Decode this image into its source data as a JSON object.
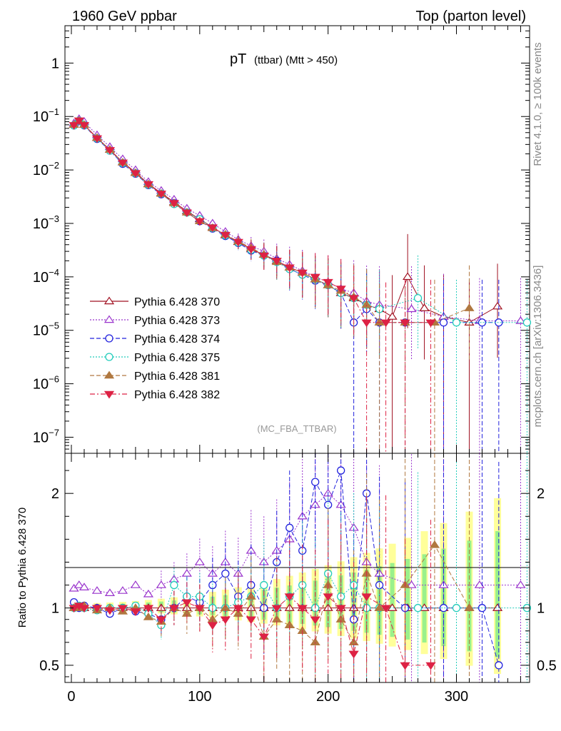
{
  "header": {
    "left": "1960 GeV ppbar",
    "right": "Top (parton level)"
  },
  "side_labels": {
    "rivet": "Rivet 4.1.0, ≥ 100k events",
    "mcplots": "mcplots.cern.ch [arXiv:1306.3436]"
  },
  "chart_data": {
    "type": "scatter",
    "title_main": "pT",
    "title_sub": "(ttbar) (Mtt > 450)",
    "watermark": "(MC_FBA_TTBAR)",
    "xlabel": "",
    "xlim": [
      -5,
      357
    ],
    "x_ticks": [
      "0",
      "100",
      "200",
      "300"
    ],
    "main": {
      "ylabel": "",
      "yscale": "log",
      "ylim": [
        5e-08,
        5
      ],
      "y_ticks": [
        {
          "base": "10",
          "exp": "−7",
          "v": 1e-07
        },
        {
          "base": "10",
          "exp": "−6",
          "v": 1e-06
        },
        {
          "base": "10",
          "exp": "−5",
          "v": 1e-05
        },
        {
          "base": "10",
          "exp": "−4",
          "v": 0.0001
        },
        {
          "base": "10",
          "exp": "−3",
          "v": 0.001
        },
        {
          "base": "10",
          "exp": "−2",
          "v": 0.01
        },
        {
          "base": "10",
          "exp": "−1",
          "v": 0.1
        },
        {
          "base": "1",
          "exp": "",
          "v": 1
        }
      ]
    },
    "ratio": {
      "ylabel": "Ratio to Pythia 6.428 370",
      "ylim": [
        0.35,
        2.35
      ],
      "y_ticks": [
        "0.5",
        "1",
        "2"
      ]
    },
    "legend": {
      "position": "lower-left"
    },
    "series": [
      {
        "name": "Pythia 6.428 370",
        "color": "#a01020",
        "marker": "triangle-open",
        "line": "solid",
        "x": [
          2,
          6,
          10,
          20,
          30,
          40,
          50,
          60,
          70,
          80,
          90,
          100,
          110,
          120,
          130,
          140,
          150,
          160,
          170,
          180,
          190,
          200,
          210,
          220,
          230,
          240,
          250,
          262,
          275,
          290,
          310,
          332
        ],
        "y": [
          0.07,
          0.085,
          0.07,
          0.04,
          0.024,
          0.014,
          0.009,
          0.0055,
          0.0037,
          0.0025,
          0.0017,
          0.0012,
          0.00085,
          0.0006,
          0.00045,
          0.00033,
          0.00026,
          0.0002,
          0.00015,
          0.00012,
          9e-05,
          7e-05,
          5e-05,
          4e-05,
          3e-05,
          2.5e-05,
          1.8e-05,
          0.0001,
          2.6e-05,
          1.8e-05,
          1.4e-05,
          2.8e-05
        ],
        "ratio": [
          1,
          1,
          1,
          1,
          1,
          1,
          1,
          1,
          1,
          1,
          1,
          1,
          1,
          1,
          1,
          1,
          1,
          1,
          1,
          1,
          1,
          1,
          1,
          1,
          1,
          1,
          1,
          1,
          1,
          1,
          1,
          1
        ]
      },
      {
        "name": "Pythia 6.428 373",
        "color": "#9933cc",
        "marker": "triangle-open",
        "line": "dotted",
        "x": [
          2,
          6,
          10,
          20,
          30,
          40,
          50,
          60,
          70,
          80,
          90,
          100,
          110,
          120,
          130,
          140,
          150,
          160,
          170,
          180,
          190,
          200,
          210,
          220,
          230,
          240,
          265,
          290,
          318,
          350
        ],
        "y": [
          0.075,
          0.09,
          0.08,
          0.045,
          0.027,
          0.016,
          0.01,
          0.006,
          0.0041,
          0.0028,
          0.0019,
          0.0014,
          0.001,
          0.0007,
          0.0005,
          0.00038,
          0.0003,
          0.00022,
          0.00017,
          0.00013,
          0.0001,
          8e-05,
          6e-05,
          5e-05,
          3.5e-05,
          3e-05,
          2.5e-05,
          1.8e-05,
          1.5e-05,
          1.5e-05
        ],
        "ratio": [
          1.17,
          1.2,
          1.18,
          1.15,
          1.13,
          1.15,
          1.2,
          1.12,
          1.2,
          1.25,
          1.3,
          1.4,
          1.3,
          1.4,
          1.3,
          1.5,
          1.4,
          1.5,
          1.6,
          1.8,
          1.9,
          2.0,
          1.9,
          1.7,
          1.4,
          1.3,
          1.2,
          1.2,
          1.2,
          1.2
        ]
      },
      {
        "name": "Pythia 6.428 374",
        "color": "#2222dd",
        "marker": "circle-open",
        "line": "dashed",
        "x": [
          2,
          6,
          10,
          20,
          30,
          40,
          50,
          60,
          70,
          80,
          90,
          100,
          110,
          120,
          130,
          140,
          150,
          160,
          170,
          180,
          190,
          200,
          210,
          220,
          230,
          240,
          260,
          290,
          320,
          333
        ],
        "y": [
          0.068,
          0.082,
          0.068,
          0.038,
          0.023,
          0.013,
          0.0085,
          0.0052,
          0.0035,
          0.0024,
          0.0016,
          0.0011,
          0.0008,
          0.00058,
          0.00043,
          0.00031,
          0.00025,
          0.0002,
          0.00014,
          0.00011,
          8.5e-05,
          7e-05,
          5e-05,
          1.4e-05,
          2.5e-05,
          1.4e-05,
          1.4e-05,
          1.4e-05,
          1.4e-05,
          1.4e-05
        ],
        "ratio": [
          1.05,
          1.0,
          1.02,
          1.0,
          0.95,
          1.0,
          0.97,
          0.95,
          0.9,
          1.0,
          1.1,
          1.05,
          1.2,
          1.3,
          1.1,
          1.2,
          1.0,
          1.4,
          1.7,
          1.5,
          2.1,
          1.9,
          2.2,
          0.9,
          2.0,
          1.2,
          1.0,
          1.0,
          1.0,
          0.5
        ]
      },
      {
        "name": "Pythia 6.428 375",
        "color": "#22ccbb",
        "marker": "circle-open",
        "line": "dotted",
        "x": [
          2,
          6,
          10,
          20,
          30,
          40,
          50,
          60,
          70,
          80,
          90,
          100,
          110,
          120,
          130,
          140,
          150,
          160,
          170,
          180,
          190,
          200,
          210,
          220,
          230,
          240,
          270,
          300,
          355
        ],
        "y": [
          0.068,
          0.083,
          0.069,
          0.039,
          0.023,
          0.0135,
          0.0087,
          0.0053,
          0.0036,
          0.0023,
          0.0016,
          0.0012,
          0.00082,
          0.0006,
          0.00044,
          0.00032,
          0.00025,
          0.00019,
          0.00014,
          0.00011,
          9e-05,
          7e-05,
          5e-05,
          4e-05,
          3e-05,
          2.5e-05,
          4e-05,
          1.4e-05,
          1.4e-05
        ],
        "ratio": [
          1.0,
          1.02,
          1.0,
          0.98,
          1.0,
          1.0,
          1.02,
          0.95,
          0.85,
          1.2,
          1.1,
          1.1,
          1.0,
          1.0,
          1.05,
          1.1,
          1.2,
          1.0,
          1.1,
          1.2,
          1.0,
          1.3,
          1.1,
          1.2,
          1.0,
          1.0,
          1.0,
          1.0,
          1.0
        ]
      },
      {
        "name": "Pythia 6.428 381",
        "color": "#b07840",
        "marker": "triangle-filled",
        "line": "dashed",
        "x": [
          2,
          6,
          10,
          20,
          30,
          40,
          50,
          60,
          70,
          80,
          90,
          100,
          110,
          120,
          130,
          140,
          150,
          160,
          170,
          180,
          190,
          200,
          210,
          220,
          230,
          240,
          260,
          283,
          310
        ],
        "y": [
          0.07,
          0.083,
          0.07,
          0.04,
          0.024,
          0.0138,
          0.0088,
          0.0054,
          0.0036,
          0.0024,
          0.0016,
          0.0011,
          0.00082,
          0.00062,
          0.00046,
          0.00035,
          0.00026,
          0.00019,
          0.00015,
          0.00012,
          9e-05,
          7e-05,
          5.5e-05,
          4.2e-05,
          3e-05,
          1.4e-05,
          1.4e-05,
          1.4e-05,
          2.6e-05
        ],
        "ratio": [
          1.0,
          1.0,
          1.02,
          0.98,
          1.0,
          0.97,
          1.0,
          0.92,
          0.88,
          1.0,
          0.95,
          1.0,
          0.9,
          1.0,
          0.95,
          1.1,
          0.75,
          0.9,
          0.85,
          0.8,
          0.7,
          1.2,
          0.9,
          0.7,
          1.3,
          1.0,
          1.2,
          1.55,
          1.0
        ]
      },
      {
        "name": "Pythia 6.428 382",
        "color": "#dd2244",
        "marker": "triangle-down-filled",
        "line": "dashdot",
        "x": [
          2,
          6,
          10,
          20,
          30,
          40,
          50,
          60,
          70,
          80,
          90,
          100,
          110,
          120,
          130,
          140,
          150,
          160,
          170,
          180,
          190,
          200,
          210,
          220,
          230,
          245,
          260,
          280
        ],
        "y": [
          0.069,
          0.084,
          0.069,
          0.039,
          0.0235,
          0.0137,
          0.0087,
          0.0054,
          0.0036,
          0.0024,
          0.0016,
          0.0011,
          0.00084,
          0.00061,
          0.00045,
          0.00033,
          0.00025,
          0.0002,
          0.00015,
          0.00012,
          0.0001,
          8e-05,
          6e-05,
          4e-05,
          1.4e-05,
          1.4e-05,
          1.4e-05,
          1.4e-05
        ],
        "ratio": [
          1.0,
          1.02,
          1.0,
          1.0,
          0.98,
          1.0,
          0.97,
          1.0,
          0.9,
          1.0,
          1.05,
          1.0,
          0.85,
          0.9,
          1.0,
          0.9,
          0.75,
          1.0,
          1.1,
          1.0,
          0.9,
          1.1,
          1.0,
          0.6,
          1.1,
          1.0,
          0.5,
          0.5
        ]
      }
    ]
  }
}
